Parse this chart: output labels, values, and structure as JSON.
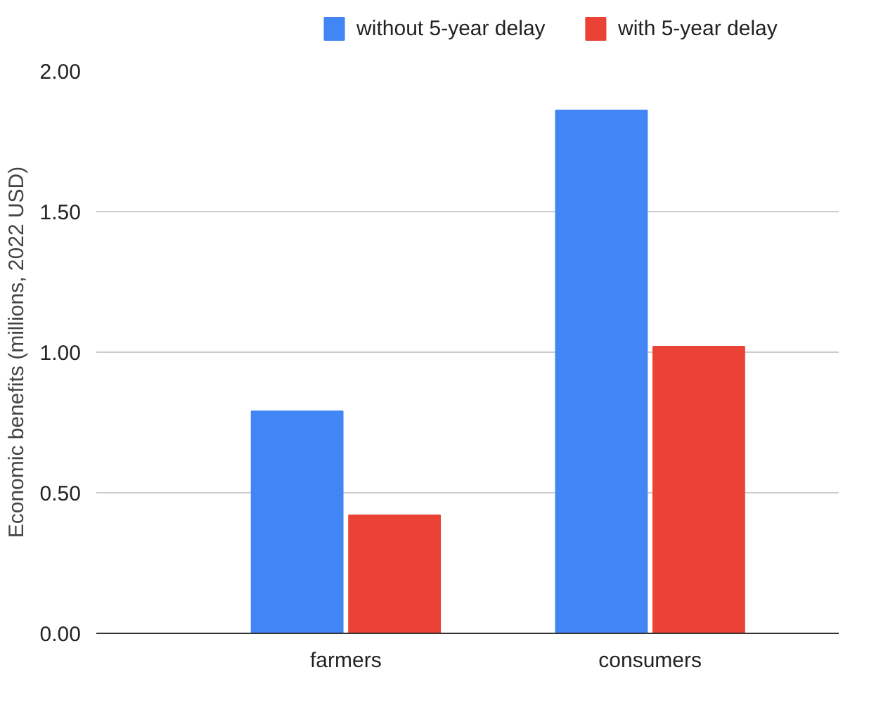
{
  "chart_data": {
    "type": "bar",
    "ylabel": "Economic benefits (millions, 2022 USD)",
    "categories": [
      "farmers",
      "consumers"
    ],
    "series": [
      {
        "name": "without 5-year delay",
        "color": "#4285f4",
        "values": [
          0.79,
          1.86
        ]
      },
      {
        "name": "with 5-year delay",
        "color": "#ea4335",
        "values": [
          0.42,
          1.02
        ]
      }
    ],
    "ylim": [
      0,
      2
    ],
    "yticks": [
      {
        "value": 0,
        "label": "0.00"
      },
      {
        "value": 0.5,
        "label": "0.50"
      },
      {
        "value": 1,
        "label": "1.00"
      },
      {
        "value": 1.5,
        "label": "1.50"
      },
      {
        "value": 2,
        "label": "2.00"
      }
    ],
    "grid": "y",
    "legend": "top"
  }
}
